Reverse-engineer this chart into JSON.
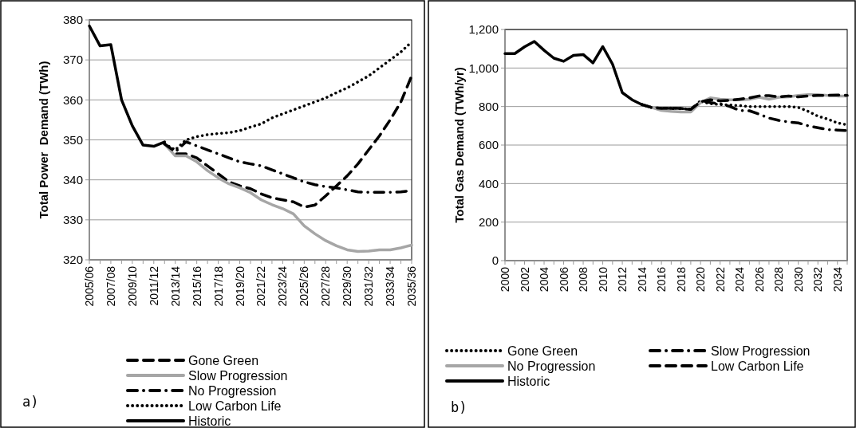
{
  "chart_data": [
    {
      "type": "line",
      "ylabel": "Total Power  Demand (TWh)",
      "categories": [
        "2005/06",
        null,
        "2007/08",
        null,
        "2009/10",
        null,
        "2011/12",
        null,
        "2013/14",
        null,
        "2015/16",
        null,
        "2017/18",
        null,
        "2019/20",
        null,
        "2021/22",
        null,
        "2023/24",
        null,
        "2025/26",
        null,
        "2027/28",
        null,
        "2029/30",
        null,
        "2031/32",
        null,
        "2033/34",
        null,
        "2035/36"
      ],
      "series": [
        {
          "name": "Gone Green",
          "color": "#000000",
          "line_style": "dashed",
          "values": [
            null,
            null,
            null,
            null,
            null,
            null,
            null,
            349,
            346.5,
            346.5,
            345.5,
            343.5,
            341.5,
            339.5,
            338.5,
            337.8,
            336.5,
            335.5,
            335,
            334.5,
            333.2,
            333.7,
            336,
            338.5,
            341,
            344,
            347.5,
            351,
            355,
            359.5,
            366
          ]
        },
        {
          "name": "Slow Progression",
          "color": "#a6a6a6",
          "line_style": "solid",
          "values": [
            null,
            null,
            null,
            null,
            null,
            null,
            null,
            349,
            346,
            346,
            344.5,
            342.3,
            340.5,
            339,
            338,
            336.8,
            335,
            333.8,
            332.8,
            331.5,
            328.5,
            326.5,
            324.8,
            323.5,
            322.5,
            322.1,
            322.2,
            322.5,
            322.5,
            323,
            323.7
          ]
        },
        {
          "name": "No Progression",
          "color": "#000000",
          "line_style": "dashdot",
          "values": [
            null,
            null,
            null,
            null,
            null,
            null,
            null,
            349,
            347,
            349.5,
            348.5,
            347.5,
            346.5,
            345.5,
            344.5,
            344,
            343.5,
            342.5,
            341.5,
            340.5,
            339.5,
            338.8,
            338.3,
            338,
            337.5,
            337,
            336.9,
            336.9,
            336.9,
            337,
            337.3
          ]
        },
        {
          "name": "Low Carbon Life",
          "color": "#000000",
          "line_style": "dotted",
          "values": [
            null,
            null,
            null,
            null,
            null,
            null,
            null,
            349,
            347.5,
            350,
            350.8,
            351.3,
            351.6,
            351.8,
            352.3,
            353.2,
            354,
            355.5,
            356.5,
            357.5,
            358.5,
            359.5,
            360.5,
            361.8,
            363,
            364.5,
            366,
            368,
            370,
            372,
            374.5
          ]
        },
        {
          "name": "Historic",
          "color": "#000000",
          "line_style": "solid",
          "values": [
            378.5,
            373.5,
            373.8,
            360,
            353.5,
            348.7,
            348.4,
            349.5,
            null,
            null,
            null,
            null,
            null,
            null,
            null,
            null,
            null,
            null,
            null,
            null,
            null,
            null,
            null,
            null,
            null,
            null,
            null,
            null,
            null,
            null,
            null
          ]
        }
      ],
      "ylim": [
        320,
        380
      ],
      "yticks": [
        320,
        330,
        340,
        350,
        360,
        370,
        380
      ],
      "grid": "y",
      "legend": "bottom",
      "annotations": [
        "a)"
      ]
    },
    {
      "type": "line",
      "ylabel": "Total Gas Demand (TWh/yr)",
      "categories": [
        "2000",
        null,
        "2002",
        null,
        "2004",
        null,
        "2006",
        null,
        "2008",
        null,
        "2010",
        null,
        "2012",
        null,
        "2014",
        null,
        "2016",
        null,
        "2018",
        null,
        "2020",
        null,
        "2022",
        null,
        "2024",
        null,
        "2026",
        null,
        "2028",
        null,
        "2030",
        null,
        "2032",
        null,
        "2034",
        null
      ],
      "series": [
        {
          "name": "Gone Green",
          "color": "#000000",
          "line_style": "dotted",
          "values": [
            null,
            null,
            null,
            null,
            null,
            null,
            null,
            null,
            null,
            null,
            null,
            null,
            null,
            null,
            810,
            795,
            790,
            792,
            790,
            785,
            825,
            815,
            810,
            808,
            805,
            800,
            800,
            800,
            800,
            800,
            795,
            775,
            750,
            735,
            715,
            705
          ]
        },
        {
          "name": "Slow Progression",
          "color": "#000000",
          "line_style": "dashdot",
          "values": [
            null,
            null,
            null,
            null,
            null,
            null,
            null,
            null,
            null,
            null,
            null,
            null,
            null,
            null,
            810,
            795,
            790,
            790,
            788,
            785,
            830,
            820,
            815,
            800,
            780,
            778,
            760,
            740,
            728,
            720,
            715,
            700,
            690,
            680,
            678,
            675
          ]
        },
        {
          "name": "No Progression",
          "color": "#a6a6a6",
          "line_style": "solid",
          "values": [
            null,
            null,
            null,
            null,
            null,
            null,
            null,
            null,
            null,
            null,
            null,
            null,
            null,
            null,
            810,
            795,
            780,
            775,
            772,
            772,
            820,
            845,
            838,
            835,
            835,
            838,
            848,
            838,
            848,
            850,
            858,
            862,
            862,
            858,
            855,
            855
          ]
        },
        {
          "name": "Low Carbon Life",
          "color": "#000000",
          "line_style": "dashed",
          "values": [
            null,
            null,
            null,
            null,
            null,
            null,
            null,
            null,
            null,
            null,
            null,
            null,
            null,
            null,
            810,
            795,
            790,
            792,
            790,
            785,
            825,
            835,
            830,
            832,
            838,
            845,
            855,
            857,
            850,
            855,
            850,
            855,
            858,
            858,
            860,
            858
          ]
        },
        {
          "name": "Historic",
          "color": "#000000",
          "line_style": "solid",
          "values": [
            1075,
            1075,
            1110,
            1138,
            1092,
            1051,
            1035,
            1066,
            1070,
            1027,
            1111,
            1020,
            872,
            835,
            810,
            null,
            null,
            null,
            null,
            null,
            null,
            null,
            null,
            null,
            null,
            null,
            null,
            null,
            null,
            null,
            null,
            null,
            null,
            null,
            null,
            null
          ]
        }
      ],
      "ylim": [
        0,
        1200
      ],
      "yticks": [
        0,
        {
          "value": 200,
          "label": "200"
        },
        {
          "value": 400,
          "label": "400"
        },
        {
          "value": 600,
          "label": "600"
        },
        {
          "value": 800,
          "label": "800"
        },
        {
          "value": 1000,
          "label": "1,000"
        },
        {
          "value": 1200,
          "label": "1,200"
        }
      ],
      "grid": "y",
      "legend": "bottom",
      "annotations": [
        "b)"
      ]
    }
  ]
}
